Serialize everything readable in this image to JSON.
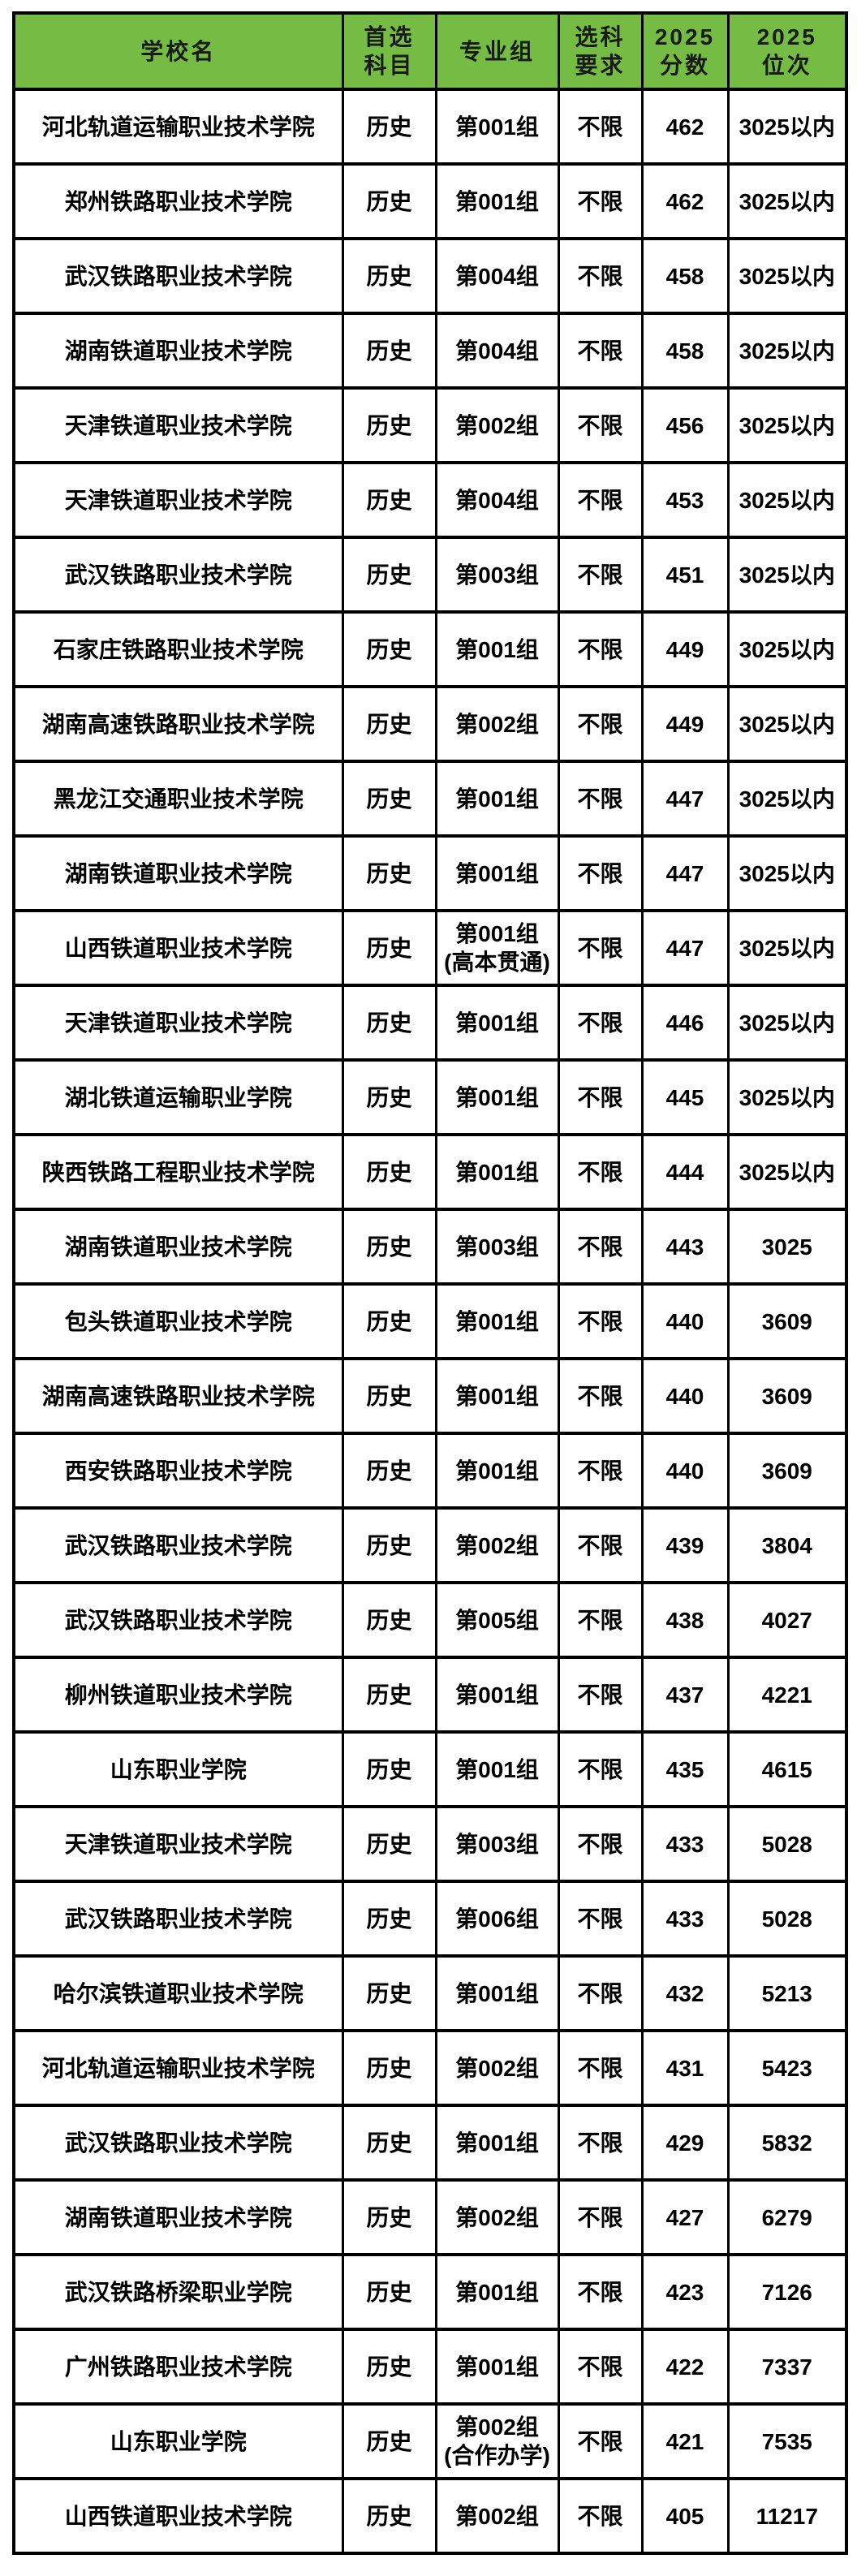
{
  "colors": {
    "page_bg": "#ffffff",
    "header_bg": "#74bc44",
    "header_text": "#1a1a1a",
    "cell_text": "#000000",
    "border": "#000000"
  },
  "table": {
    "columns": [
      {
        "key": "school",
        "label": "学校名"
      },
      {
        "key": "subject",
        "label": "首选\n科目"
      },
      {
        "key": "group",
        "label": "专业组"
      },
      {
        "key": "requirement",
        "label": "选科\n要求"
      },
      {
        "key": "score2025",
        "label": "2025\n分数"
      },
      {
        "key": "rank2025",
        "label": "2025\n位次"
      }
    ],
    "rows": [
      [
        "河北轨道运输职业技术学院",
        "历史",
        "第001组",
        "不限",
        "462",
        "3025以内"
      ],
      [
        "郑州铁路职业技术学院",
        "历史",
        "第001组",
        "不限",
        "462",
        "3025以内"
      ],
      [
        "武汉铁路职业技术学院",
        "历史",
        "第004组",
        "不限",
        "458",
        "3025以内"
      ],
      [
        "湖南铁道职业技术学院",
        "历史",
        "第004组",
        "不限",
        "458",
        "3025以内"
      ],
      [
        "天津铁道职业技术学院",
        "历史",
        "第002组",
        "不限",
        "456",
        "3025以内"
      ],
      [
        "天津铁道职业技术学院",
        "历史",
        "第004组",
        "不限",
        "453",
        "3025以内"
      ],
      [
        "武汉铁路职业技术学院",
        "历史",
        "第003组",
        "不限",
        "451",
        "3025以内"
      ],
      [
        "石家庄铁路职业技术学院",
        "历史",
        "第001组",
        "不限",
        "449",
        "3025以内"
      ],
      [
        "湖南高速铁路职业技术学院",
        "历史",
        "第002组",
        "不限",
        "449",
        "3025以内"
      ],
      [
        "黑龙江交通职业技术学院",
        "历史",
        "第001组",
        "不限",
        "447",
        "3025以内"
      ],
      [
        "湖南铁道职业技术学院",
        "历史",
        "第001组",
        "不限",
        "447",
        "3025以内"
      ],
      [
        "山西铁道职业技术学院",
        "历史",
        "第001组\n(高本贯通)",
        "不限",
        "447",
        "3025以内"
      ],
      [
        "天津铁道职业技术学院",
        "历史",
        "第001组",
        "不限",
        "446",
        "3025以内"
      ],
      [
        "湖北铁道运输职业学院",
        "历史",
        "第001组",
        "不限",
        "445",
        "3025以内"
      ],
      [
        "陕西铁路工程职业技术学院",
        "历史",
        "第001组",
        "不限",
        "444",
        "3025以内"
      ],
      [
        "湖南铁道职业技术学院",
        "历史",
        "第003组",
        "不限",
        "443",
        "3025"
      ],
      [
        "包头铁道职业技术学院",
        "历史",
        "第001组",
        "不限",
        "440",
        "3609"
      ],
      [
        "湖南高速铁路职业技术学院",
        "历史",
        "第001组",
        "不限",
        "440",
        "3609"
      ],
      [
        "西安铁路职业技术学院",
        "历史",
        "第001组",
        "不限",
        "440",
        "3609"
      ],
      [
        "武汉铁路职业技术学院",
        "历史",
        "第002组",
        "不限",
        "439",
        "3804"
      ],
      [
        "武汉铁路职业技术学院",
        "历史",
        "第005组",
        "不限",
        "438",
        "4027"
      ],
      [
        "柳州铁道职业技术学院",
        "历史",
        "第001组",
        "不限",
        "437",
        "4221"
      ],
      [
        "山东职业学院",
        "历史",
        "第001组",
        "不限",
        "435",
        "4615"
      ],
      [
        "天津铁道职业技术学院",
        "历史",
        "第003组",
        "不限",
        "433",
        "5028"
      ],
      [
        "武汉铁路职业技术学院",
        "历史",
        "第006组",
        "不限",
        "433",
        "5028"
      ],
      [
        "哈尔滨铁道职业技术学院",
        "历史",
        "第001组",
        "不限",
        "432",
        "5213"
      ],
      [
        "河北轨道运输职业技术学院",
        "历史",
        "第002组",
        "不限",
        "431",
        "5423"
      ],
      [
        "武汉铁路职业技术学院",
        "历史",
        "第001组",
        "不限",
        "429",
        "5832"
      ],
      [
        "湖南铁道职业技术学院",
        "历史",
        "第002组",
        "不限",
        "427",
        "6279"
      ],
      [
        "武汉铁路桥梁职业学院",
        "历史",
        "第001组",
        "不限",
        "423",
        "7126"
      ],
      [
        "广州铁路职业技术学院",
        "历史",
        "第001组",
        "不限",
        "422",
        "7337"
      ],
      [
        "山东职业学院",
        "历史",
        "第002组\n(合作办学)",
        "不限",
        "421",
        "7535"
      ],
      [
        "山西铁道职业技术学院",
        "历史",
        "第002组",
        "不限",
        "405",
        "11217"
      ]
    ]
  }
}
